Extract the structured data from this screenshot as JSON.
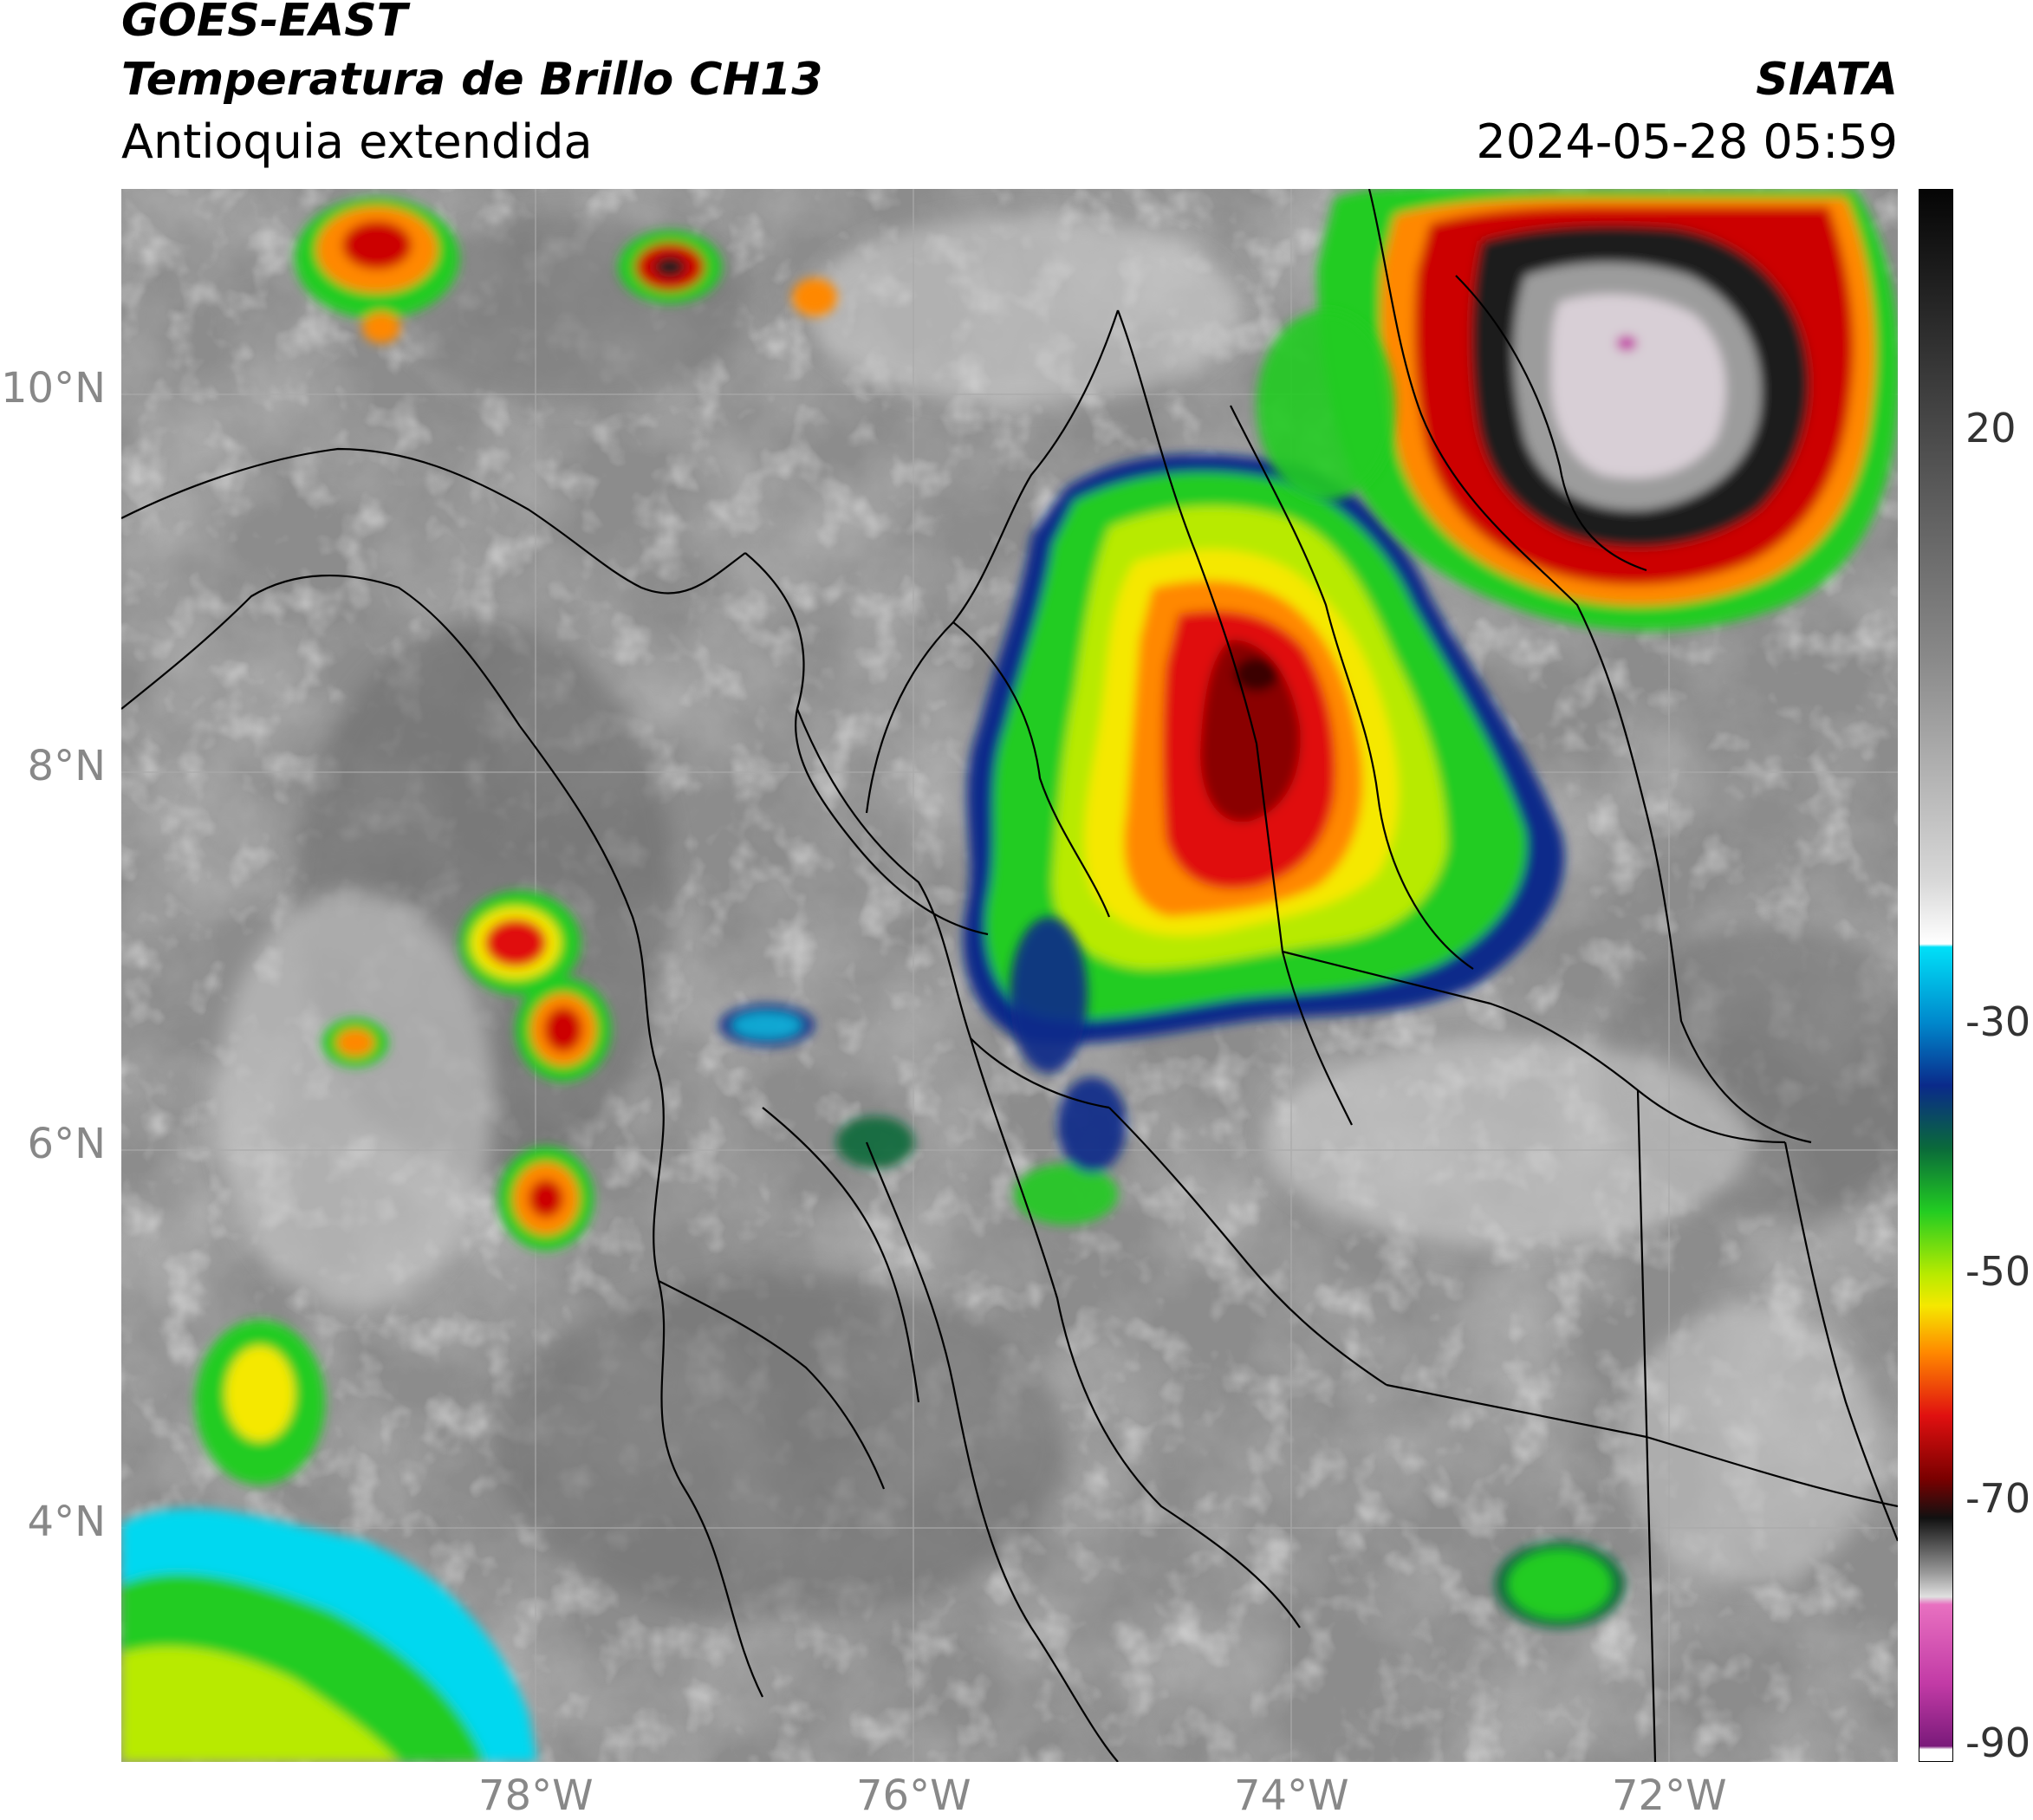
{
  "header": {
    "satellite": "GOES-EAST",
    "product": "Temperatura de Brillo CH13",
    "region": "Antioquia extendida",
    "agency": "SIATA",
    "datetime": "2024-05-28 05:59"
  },
  "map": {
    "lat_labels": [
      "10°N",
      "8°N",
      "6°N",
      "4°N"
    ],
    "lon_labels": [
      "78°W",
      "76°W",
      "74°W",
      "72°W"
    ],
    "background": "grayscale infrared cloud imagery",
    "storm_cells": [
      {
        "name": "convective-complex-central",
        "coldest_c": -70
      },
      {
        "name": "convective-complex-northeast",
        "coldest_c": -85
      },
      {
        "name": "cell-pacific-west",
        "coldest_c": -60
      },
      {
        "name": "cell-southwest-corner",
        "coldest_c": -45
      },
      {
        "name": "cell-southeast",
        "coldest_c": -40
      }
    ]
  },
  "colorbar": {
    "ticks": [
      "20",
      "-30",
      "-50",
      "-70",
      "-90"
    ],
    "range_c": [
      -90,
      35
    ],
    "colors": {
      "magenta": "#c23ba6",
      "black": "#111111",
      "dark_red": "#7a0000",
      "red": "#e01010",
      "orange": "#ff8800",
      "yellow": "#f5e800",
      "green": "#22cc22",
      "dark_green": "#0a6a3a",
      "navy": "#0a2a8a",
      "cyan": "#00d8f0"
    }
  }
}
